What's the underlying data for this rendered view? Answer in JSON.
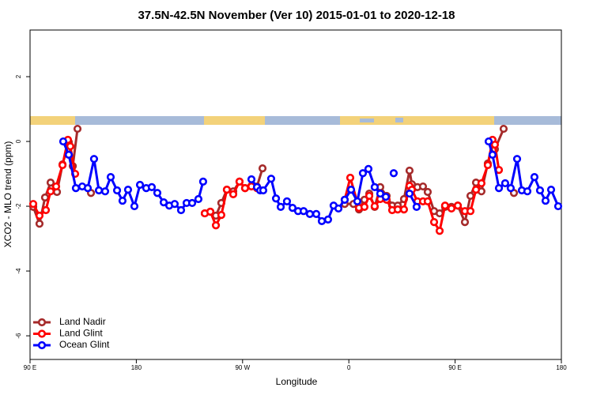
{
  "chart_data": {
    "type": "line",
    "title": "37.5N-42.5N November (Ver 10)   2015-01-01 to 2020-12-18",
    "x_label": "Longitude",
    "y_label": "XCO2 - MLO trend (ppm)",
    "xlim": [
      90,
      540
    ],
    "ylim": [
      -6.73,
      3.44
    ],
    "xticks": [
      {
        "value": 90,
        "label": "90 E"
      },
      180,
      {
        "value": 270,
        "label": "90 W"
      },
      {
        "value": 360,
        "label": "0"
      },
      {
        "value": 450,
        "label": "90 E"
      },
      {
        "value": 540,
        "label": "180"
      }
    ],
    "yticks": [
      2,
      0,
      -2,
      -4,
      -6
    ],
    "legend": "bottomleft",
    "series": [
      {
        "name": "Land Nadir",
        "color": "#a52a2a",
        "x": [
          92.7,
          98.0,
          102.7,
          107.4,
          112.8,
          117.5,
          122.8,
          126.2,
          130.2,
          null,
          141.6,
          null,
          238.0,
          242.7,
          247.4,
          252.0,
          256.7,
          262.1,
          267.4,
          272.1,
          277.5,
          282.2,
          286.9,
          null,
          356.5,
          363.9,
          368.6,
          373.2,
          377.3,
          381.9,
          386.6,
          392.0,
          396.7,
          401.4,
          406.7,
          411.4,
          413.4,
          418.1,
          422.8,
          426.8,
          432.2,
          436.9,
          441.5,
          446.9,
          452.3,
          458.3,
          463.0,
          467.7,
          472.3,
          477.7,
          481.7,
          483.7,
          491.1,
          null,
          499.8
        ],
        "values": [
          -2.02,
          -2.54,
          -1.73,
          -1.27,
          -1.56,
          -0.71,
          -0.02,
          -0.76,
          0.39,
          null,
          -1.59,
          null,
          -2.22,
          -2.17,
          -2.29,
          -1.9,
          -1.49,
          -1.54,
          -1.24,
          -1.44,
          -1.37,
          -1.39,
          -0.83,
          null,
          -1.93,
          -1.93,
          -2.1,
          -1.8,
          -1.61,
          -2.02,
          -1.41,
          -1.68,
          -1.98,
          -1.98,
          -1.78,
          -0.9,
          -1.32,
          -1.41,
          -1.39,
          -1.56,
          -2.15,
          -2.22,
          -2.02,
          -2.02,
          -1.98,
          -2.49,
          -1.68,
          -1.27,
          -1.54,
          -0.68,
          -0.05,
          -0.24,
          0.39,
          null,
          -1.59
        ]
      },
      {
        "name": "Land Glint",
        "color": "#ff0000",
        "x": [
          92.7,
          98.0,
          103.4,
          107.4,
          112.1,
          117.5,
          122.1,
          124.1,
          128.2,
          null,
          238.0,
          242.7,
          247.4,
          252.0,
          256.7,
          262.1,
          267.4,
          272.1,
          277.5,
          282.2,
          null,
          356.5,
          361.2,
          368.6,
          373.2,
          377.3,
          381.9,
          386.6,
          392.0,
          396.7,
          401.4,
          406.7,
          411.4,
          413.4,
          418.1,
          422.8,
          426.8,
          432.2,
          436.9,
          441.5,
          446.9,
          452.3,
          458.3,
          463.0,
          467.7,
          472.3,
          477.7,
          481.7,
          483.7,
          487.1
        ],
        "values": [
          -1.93,
          -2.29,
          -2.12,
          -1.54,
          -1.39,
          -0.73,
          0.05,
          -0.15,
          -1.0,
          null,
          -2.22,
          -2.17,
          -2.59,
          -2.27,
          -1.49,
          -1.63,
          -1.24,
          -1.44,
          -1.39,
          -1.44,
          null,
          -1.8,
          -1.12,
          -2.05,
          -2.02,
          -1.68,
          -2.0,
          -1.78,
          -1.8,
          -2.12,
          -2.1,
          -2.1,
          -1.37,
          -1.49,
          -1.85,
          -1.85,
          -1.85,
          -2.49,
          -2.76,
          -1.98,
          -2.07,
          -1.98,
          -2.15,
          -2.15,
          -1.49,
          -1.29,
          -0.73,
          0.05,
          -0.1,
          -0.88
        ]
      },
      {
        "name": "Ocean Glint",
        "color": "#0000ff",
        "x": [
          118.1,
          122.8,
          128.8,
          134.2,
          138.9,
          144.2,
          148.3,
          153.6,
          158.3,
          163.7,
          168.3,
          173.0,
          178.4,
          183.1,
          188.4,
          193.1,
          197.8,
          203.2,
          207.9,
          212.5,
          217.9,
          222.6,
          227.3,
          232.6,
          236.6,
          null,
          277.5,
          282.2,
          284.9,
          287.5,
          294.2,
          298.3,
          302.3,
          307.6,
          312.3,
          317.0,
          321.7,
          327.0,
          332.4,
          337.1,
          342.4,
          347.1,
          351.2,
          356.5,
          361.9,
          367.2,
          371.9,
          376.6,
          381.9,
          386.6,
          null,
          391.3,
          null,
          398.0,
          null,
          411.4,
          417.4,
          null,
          478.4,
          481.7,
          487.1,
          492.4,
          497.1,
          502.5,
          506.5,
          511.2,
          517.2,
          521.9,
          526.6,
          531.3,
          537.3
        ],
        "values": [
          0.0,
          -0.41,
          -1.44,
          -1.39,
          -1.44,
          -0.54,
          -1.51,
          -1.54,
          -1.1,
          -1.51,
          -1.83,
          -1.49,
          -2.0,
          -1.34,
          -1.44,
          -1.41,
          -1.59,
          -1.88,
          -1.98,
          -1.93,
          -2.12,
          -1.9,
          -1.9,
          -1.78,
          -1.24,
          null,
          -1.17,
          -1.41,
          -1.51,
          -1.51,
          -1.15,
          -1.76,
          -2.02,
          -1.85,
          -2.05,
          -2.15,
          -2.15,
          -2.24,
          -2.24,
          -2.46,
          -2.41,
          -1.98,
          -2.07,
          -1.8,
          -1.49,
          -1.85,
          -0.98,
          -0.85,
          -1.41,
          -1.61,
          null,
          -1.71,
          null,
          -0.98,
          null,
          -1.61,
          -2.02,
          null,
          0.0,
          -0.41,
          -1.44,
          -1.29,
          -1.44,
          -0.54,
          -1.51,
          -1.54,
          -1.1,
          -1.51,
          -1.83,
          -1.49,
          -2.0
        ]
      }
    ]
  }
}
